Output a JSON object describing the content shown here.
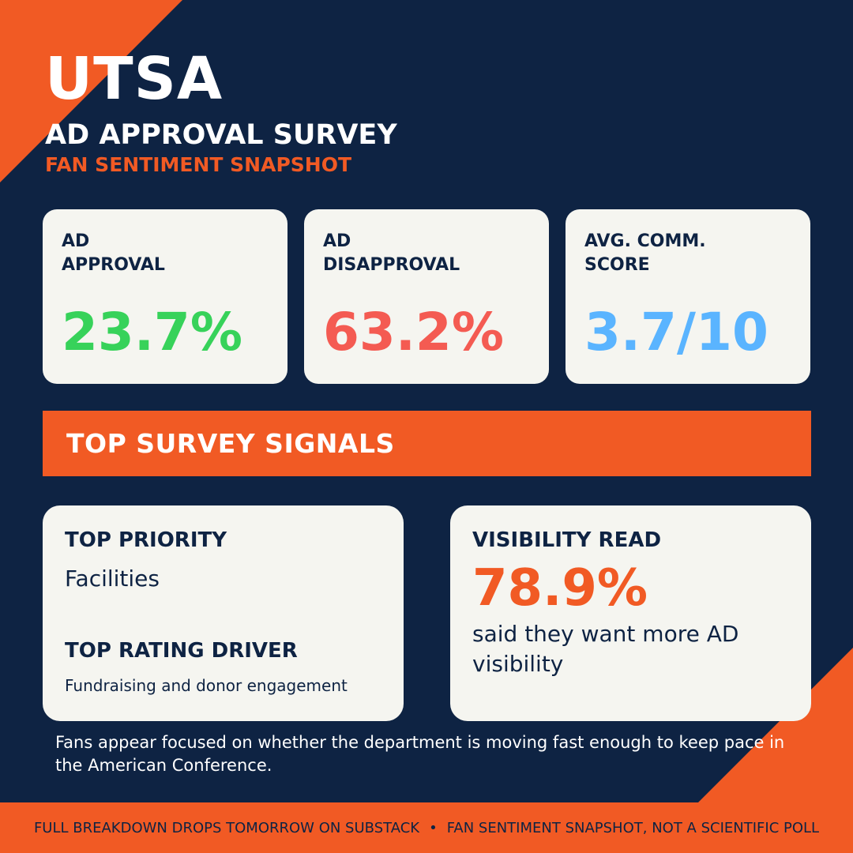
{
  "colors": {
    "background": "#0e2343",
    "accent": "#f15a24",
    "card": "#f5f5f0",
    "approval": "#37d25a",
    "disapproval": "#f45b52",
    "score": "#5ab4ff"
  },
  "header": {
    "school": "UTSA",
    "title": "AD APPROVAL SURVEY",
    "subtitle": "FAN SENTIMENT SNAPSHOT"
  },
  "stats": [
    {
      "label": "AD\nAPPROVAL",
      "value": "23.7%"
    },
    {
      "label": "AD\nDISAPPROVAL",
      "value": "63.2%"
    },
    {
      "label": "AVG. COMM.\nSCORE",
      "value": "3.7/10"
    }
  ],
  "banner": {
    "title": "TOP SURVEY SIGNALS"
  },
  "signals": {
    "priority_heading": "TOP PRIORITY",
    "priority_value": "Facilities",
    "driver_heading": "TOP RATING DRIVER",
    "driver_value": "Fundraising and donor engagement",
    "visibility_heading": "VISIBILITY READ",
    "visibility_value": "78.9%",
    "visibility_caption": "said they want more AD visibility"
  },
  "note": "Fans appear focused on whether the department is moving fast enough to keep pace in the American Conference.",
  "footer": {
    "left": "FULL BREAKDOWN DROPS TOMORROW ON SUBSTACK",
    "separator": "•",
    "right": "FAN SENTIMENT SNAPSHOT, NOT A SCIENTIFIC POLL"
  }
}
